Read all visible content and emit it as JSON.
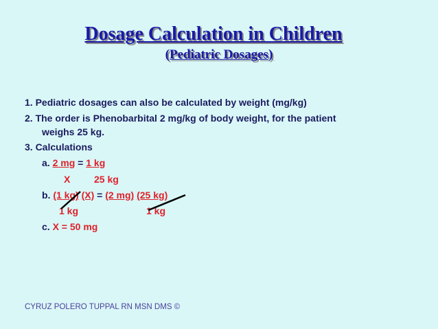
{
  "title": "Dosage Calculation in Children",
  "subtitle": "(Pediatric Dosages)",
  "points": {
    "p1": "1. Pediatric dosages can also be calculated by weight (mg/kg)",
    "p2_line1": "2. The order is Phenobarbital 2 mg/kg of body weight, for the patient",
    "p2_line2": "weighs 25 kg.",
    "p3": "3. Calculations"
  },
  "calc": {
    "a_prefix": "a.",
    "a_num1": "2 mg",
    "a_eq": "=",
    "a_num2": "1 kg",
    "a_den1": "X",
    "a_den2": "25 kg",
    "b_prefix": "b.",
    "b_term1": "(1 kg)",
    "b_term2": "(X)",
    "b_eq": "=",
    "b_term3": "(2 mg)",
    "b_term4": "(25 kg)",
    "b_den1": "1 kg",
    "b_den2": "1 kg",
    "c_prefix": "c.",
    "c_result": "X = 50 mg"
  },
  "footer": "CYRUZ POLERO TUPPAL RN MSN DMS ©",
  "colors": {
    "background": "#d9f7f7",
    "title": "#1a1aa6",
    "body_text": "#1b1b5e",
    "calc_text": "#e0202a",
    "strike": "#000000"
  }
}
